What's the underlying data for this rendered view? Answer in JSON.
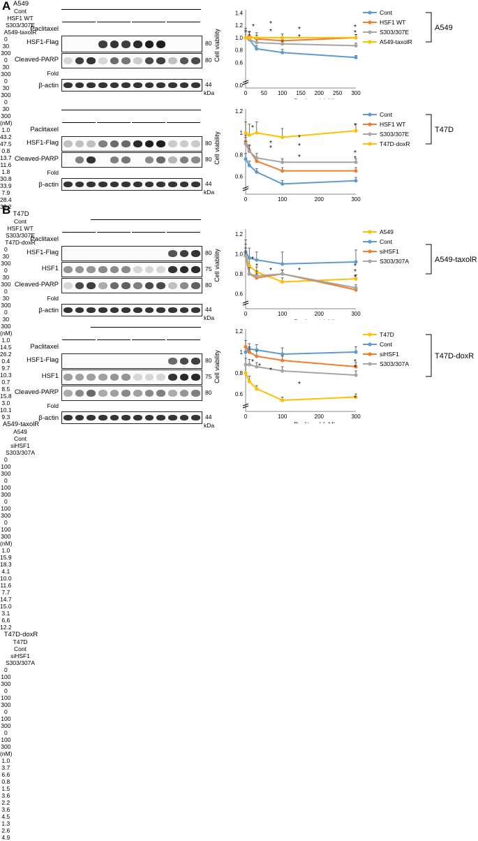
{
  "panels": [
    {
      "letter": "A"
    },
    {
      "letter": "B"
    }
  ],
  "common": {
    "paclitaxel_label": "Paclitaxel",
    "nm_label": "(nM)",
    "fold_label": "Fold",
    "kda_label": "kDa",
    "hsf1_flag_label": "HSF1-Flag",
    "hsf1_label": "HSF1",
    "parp_label": "Cleaved-PARP",
    "actin_label": "β-actin",
    "mw_80": "80",
    "mw_75": "75",
    "mw_44": "44"
  },
  "blot_a549": {
    "top_header": "A549",
    "groups": [
      "Cont",
      "HSF1 WT",
      "S303/307E",
      "A549-taxolR"
    ],
    "doses": [
      "0",
      "30",
      "300",
      "0",
      "30",
      "300",
      "0",
      "30",
      "300",
      "0",
      "30",
      "300"
    ],
    "fold": [
      "1.0",
      "43.2",
      "47.5",
      "0.8",
      "13.7",
      "11.6",
      "1.8",
      "30.8",
      "33.9",
      "7.9",
      "28.4",
      "33.2"
    ]
  },
  "blot_t47d": {
    "top_header": "T47D",
    "groups": [
      "Cont",
      "HSF1 WT",
      "S303/307E",
      "T47D-doxR"
    ],
    "doses": [
      "0",
      "30",
      "300",
      "0",
      "30",
      "300",
      "0",
      "30",
      "300",
      "0",
      "30",
      "300"
    ],
    "fold": [
      "1.0",
      "14.5",
      "26.2",
      "0.4",
      "9.7",
      "10.3",
      "0.7",
      "8.5",
      "15.8",
      "3.0",
      "10.1",
      "9.3"
    ]
  },
  "blot_b_a549": {
    "top_header": "A549-taxolR",
    "groups": [
      "A549",
      "Cont",
      "siHSF1",
      "S303/307A"
    ],
    "doses": [
      "0",
      "100",
      "300",
      "0",
      "100",
      "300",
      "0",
      "100",
      "300",
      "0",
      "100",
      "300"
    ],
    "fold": [
      "1.0",
      "15.9",
      "18.3",
      "4.1",
      "10.0",
      "11.6",
      "7.7",
      "14.7",
      "15.0",
      "3.1",
      "6.6",
      "12.2"
    ]
  },
  "blot_b_t47d": {
    "top_header": "T47D-doxR",
    "groups": [
      "T47D",
      "Cont",
      "siHSF1",
      "S303/307A"
    ],
    "doses": [
      "0",
      "100",
      "300",
      "0",
      "100",
      "300",
      "0",
      "100",
      "300",
      "0",
      "100",
      "300"
    ],
    "fold": [
      "1.0",
      "3.7",
      "6.6",
      "0.8",
      "1.5",
      "3.6",
      "2.2",
      "3.6",
      "4.5",
      "1.3",
      "2.6",
      "4.9"
    ]
  },
  "chart_data": [
    {
      "type": "line",
      "title": "",
      "xlabel": "Paclitaxel  (nM)",
      "ylabel": "Cell viability",
      "x": [
        0,
        10,
        30,
        100,
        300
      ],
      "xticks": [
        "0",
        "50",
        "100",
        "150",
        "200",
        "250",
        "300"
      ],
      "yticks": [
        "0.0",
        "0.6",
        "0.8",
        "1.0",
        "1.2",
        "1.4"
      ],
      "group_label": "A549",
      "series": [
        {
          "name": "Cont",
          "color": "#5b9bd5",
          "values": [
            1.0,
            0.97,
            0.82,
            0.76,
            0.68
          ],
          "err": [
            0.15,
            0.12,
            0.05,
            0.05,
            0.03
          ]
        },
        {
          "name": "HSF1 WT",
          "color": "#ed7d31",
          "values": [
            1.0,
            1.02,
            0.98,
            0.95,
            1.0
          ],
          "err": [
            0.1,
            0.08,
            0.06,
            0.05,
            0.05
          ]
        },
        {
          "name": "S303/307E",
          "color": "#a5a5a5",
          "values": [
            1.0,
            0.97,
            0.92,
            0.9,
            0.87
          ],
          "err": [
            0.1,
            0.08,
            0.06,
            0.05,
            0.04
          ]
        },
        {
          "name": "A549-taxolR",
          "color": "#ffc000",
          "values": [
            1.0,
            1.0,
            1.0,
            1.0,
            1.0
          ],
          "err": [
            0.12,
            0.1,
            0.08,
            0.06,
            0.05
          ]
        }
      ]
    },
    {
      "type": "line",
      "title": "",
      "xlabel": "Paclitaxel  (nM)",
      "ylabel": "Cell viability",
      "x": [
        0,
        10,
        30,
        100,
        300
      ],
      "xticks": [
        "0",
        "100",
        "200",
        "300"
      ],
      "yticks": [
        "0.6",
        "0.8",
        "1",
        "1.2"
      ],
      "group_label": "T47D",
      "series": [
        {
          "name": "Cont",
          "color": "#5b9bd5",
          "values": [
            0.76,
            0.7,
            0.64,
            0.53,
            0.56
          ],
          "err": [
            0.05,
            0.04,
            0.03,
            0.03,
            0.03
          ]
        },
        {
          "name": "HSF1 WT",
          "color": "#ed7d31",
          "values": [
            0.92,
            0.84,
            0.74,
            0.65,
            0.65
          ],
          "err": [
            0.06,
            0.05,
            0.04,
            0.03,
            0.03
          ]
        },
        {
          "name": "S303/307E",
          "color": "#a5a5a5",
          "values": [
            0.9,
            0.83,
            0.77,
            0.73,
            0.73
          ],
          "err": [
            0.06,
            0.05,
            0.04,
            0.03,
            0.03
          ]
        },
        {
          "name": "T47D-doxR",
          "color": "#ffc000",
          "values": [
            1.0,
            0.98,
            1.0,
            0.96,
            1.02
          ],
          "err": [
            0.1,
            0.1,
            0.1,
            0.08,
            0.06
          ]
        }
      ]
    },
    {
      "type": "line",
      "title": "",
      "xlabel": "Paclitaxel  (nM)",
      "ylabel": "Cell viability",
      "x": [
        0,
        10,
        30,
        100,
        300
      ],
      "xticks": [
        "0",
        "100",
        "200",
        "300"
      ],
      "yticks": [
        "0.6",
        "0.8",
        "1.0",
        "1.2"
      ],
      "group_label": "A549-taxolR",
      "series": [
        {
          "name": "A549",
          "color": "#ffc000",
          "values": [
            1.0,
            0.88,
            0.82,
            0.72,
            0.75
          ],
          "err": [
            0.1,
            0.08,
            0.05,
            0.04,
            0.04
          ]
        },
        {
          "name": "Cont",
          "color": "#5b9bd5",
          "values": [
            1.02,
            0.96,
            0.94,
            0.9,
            0.92
          ],
          "err": [
            0.12,
            0.1,
            0.08,
            0.12,
            0.12
          ]
        },
        {
          "name": "siHSF1",
          "color": "#ed7d31",
          "values": [
            0.98,
            0.8,
            0.76,
            0.8,
            0.64
          ],
          "err": [
            0.08,
            0.06,
            0.04,
            0.04,
            0.03
          ]
        },
        {
          "name": "S303/307A",
          "color": "#a5a5a5",
          "values": [
            0.98,
            0.8,
            0.78,
            0.8,
            0.66
          ],
          "err": [
            0.08,
            0.06,
            0.05,
            0.04,
            0.03
          ]
        }
      ]
    },
    {
      "type": "line",
      "title": "",
      "xlabel": "Paclitaxel  (nM)",
      "ylabel": "Cell viability",
      "x": [
        0,
        10,
        30,
        100,
        300
      ],
      "xticks": [
        "0",
        "100",
        "200",
        "300"
      ],
      "yticks": [
        "0.6",
        "0.8",
        "1",
        "1.2"
      ],
      "group_label": "T47D-doxR",
      "series": [
        {
          "name": "T47D",
          "color": "#ffc000",
          "values": [
            0.8,
            0.72,
            0.65,
            0.54,
            0.57
          ],
          "err": [
            0.08,
            0.05,
            0.03,
            0.03,
            0.03
          ]
        },
        {
          "name": "Cont",
          "color": "#5b9bd5",
          "values": [
            1.0,
            1.03,
            1.02,
            0.98,
            1.0
          ],
          "err": [
            0.06,
            0.05,
            0.05,
            0.06,
            0.05
          ]
        },
        {
          "name": "siHSF1",
          "color": "#ed7d31",
          "values": [
            1.05,
            1.0,
            0.96,
            0.92,
            0.86
          ],
          "err": [
            0.06,
            0.05,
            0.05,
            0.04,
            0.04
          ]
        },
        {
          "name": "S303/307A",
          "color": "#a5a5a5",
          "values": [
            0.88,
            0.88,
            0.86,
            0.82,
            0.78
          ],
          "err": [
            0.06,
            0.05,
            0.04,
            0.04,
            0.04
          ]
        }
      ]
    }
  ]
}
